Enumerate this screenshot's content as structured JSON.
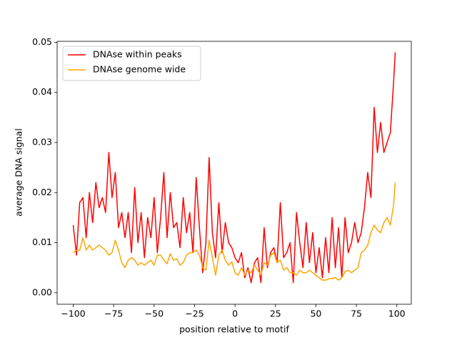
{
  "chart_data": {
    "type": "line",
    "x_label": "position relative to motif",
    "y_label": "average DNA signal",
    "x": [
      -100,
      -98,
      -96,
      -94,
      -92,
      -90,
      -88,
      -86,
      -84,
      -82,
      -80,
      -78,
      -76,
      -74,
      -72,
      -70,
      -68,
      -66,
      -64,
      -62,
      -60,
      -58,
      -56,
      -54,
      -52,
      -50,
      -48,
      -46,
      -44,
      -42,
      -40,
      -38,
      -36,
      -34,
      -32,
      -30,
      -28,
      -26,
      -24,
      -22,
      -20,
      -18,
      -16,
      -14,
      -12,
      -10,
      -8,
      -6,
      -4,
      -2,
      0,
      2,
      4,
      6,
      8,
      10,
      12,
      14,
      16,
      18,
      20,
      22,
      24,
      26,
      28,
      30,
      32,
      34,
      36,
      38,
      40,
      42,
      44,
      46,
      48,
      50,
      52,
      54,
      56,
      58,
      60,
      62,
      64,
      66,
      68,
      70,
      72,
      74,
      76,
      78,
      80,
      82,
      84,
      86,
      88,
      90,
      92,
      94,
      96,
      98,
      99
    ],
    "series": [
      {
        "name": "DNAse within peaks",
        "color": "#ff0000",
        "values": [
          0.0135,
          0.0075,
          0.018,
          0.019,
          0.011,
          0.02,
          0.014,
          0.022,
          0.017,
          0.019,
          0.016,
          0.028,
          0.019,
          0.024,
          0.013,
          0.016,
          0.011,
          0.016,
          0.008,
          0.021,
          0.01,
          0.016,
          0.007,
          0.015,
          0.011,
          0.019,
          0.008,
          0.015,
          0.024,
          0.011,
          0.02,
          0.013,
          0.014,
          0.009,
          0.019,
          0.012,
          0.016,
          0.008,
          0.023,
          0.013,
          0.004,
          0.01,
          0.027,
          0.012,
          0.007,
          0.018,
          0.008,
          0.014,
          0.01,
          0.009,
          0.007,
          0.006,
          0.008,
          0.003,
          0.005,
          0.002,
          0.006,
          0.007,
          0.002,
          0.013,
          0.005,
          0.008,
          0.009,
          0.006,
          0.018,
          0.007,
          0.008,
          0.01,
          0.002,
          0.016,
          0.01,
          0.005,
          0.014,
          0.006,
          0.012,
          0.004,
          0.009,
          0.003,
          0.011,
          0.004,
          0.015,
          0.005,
          0.013,
          0.003,
          0.015,
          0.008,
          0.01,
          0.014,
          0.01,
          0.012,
          0.017,
          0.024,
          0.019,
          0.037,
          0.028,
          0.034,
          0.028,
          0.03,
          0.032,
          0.042,
          0.048
        ]
      },
      {
        "name": "DNAse genome wide",
        "color": "#ffa500",
        "values": [
          0.008,
          0.0085,
          0.0085,
          0.011,
          0.0085,
          0.0095,
          0.0085,
          0.009,
          0.0095,
          0.009,
          0.0085,
          0.0075,
          0.008,
          0.0105,
          0.0085,
          0.006,
          0.005,
          0.0065,
          0.007,
          0.0065,
          0.0055,
          0.006,
          0.0055,
          0.006,
          0.0065,
          0.0055,
          0.0075,
          0.0075,
          0.0065,
          0.0058,
          0.0078,
          0.0065,
          0.0068,
          0.0055,
          0.006,
          0.0075,
          0.008,
          0.008,
          0.0085,
          0.0075,
          0.005,
          0.0045,
          0.0105,
          0.007,
          0.0035,
          0.0075,
          0.0085,
          0.0065,
          0.0055,
          0.0062,
          0.004,
          0.0035,
          0.005,
          0.0035,
          0.0045,
          0.004,
          0.0055,
          0.0045,
          0.0035,
          0.006,
          0.0055,
          0.0075,
          0.008,
          0.006,
          0.0065,
          0.0045,
          0.005,
          0.004,
          0.004,
          0.0035,
          0.0045,
          0.004,
          0.004,
          0.0045,
          0.004,
          0.0035,
          0.003,
          0.0025,
          0.0025,
          0.0028,
          0.0028,
          0.003,
          0.0025,
          0.003,
          0.0042,
          0.0045,
          0.004,
          0.0045,
          0.005,
          0.008,
          0.0085,
          0.0095,
          0.012,
          0.0135,
          0.0125,
          0.012,
          0.014,
          0.015,
          0.0135,
          0.0175,
          0.022
        ]
      }
    ],
    "xlim": [
      -109.95,
      108.95
    ],
    "ylim": [
      -0.0023,
      0.0502
    ],
    "xticks": [
      {
        "value": -100,
        "label": "−100"
      },
      {
        "value": -75,
        "label": "−75"
      },
      {
        "value": -50,
        "label": "−50"
      },
      {
        "value": -25,
        "label": "−25"
      },
      0,
      25,
      50,
      75,
      100
    ],
    "yticks": [
      {
        "value": 0,
        "label": "0.00"
      },
      {
        "value": 0.01,
        "label": "0.01"
      },
      {
        "value": 0.02,
        "label": "0.02"
      },
      {
        "value": 0.03,
        "label": "0.03"
      },
      {
        "value": 0.04,
        "label": "0.04"
      },
      {
        "value": 0.05,
        "label": "0.05"
      }
    ],
    "grid": false,
    "legend": "upper left"
  }
}
